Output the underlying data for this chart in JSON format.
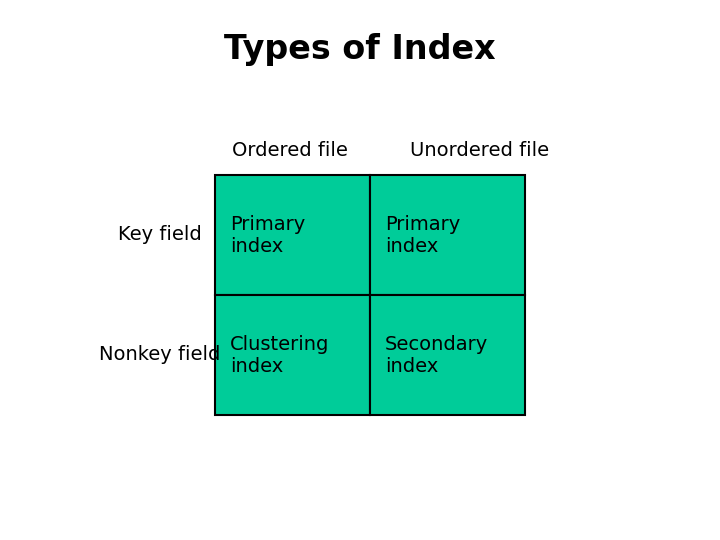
{
  "title": "Types of Index",
  "title_fontsize": 24,
  "title_fontweight": "bold",
  "title_color": "#000000",
  "background_color": "#ffffff",
  "cell_color": "#00CC99",
  "cell_border_color": "#000000",
  "cell_text_color": "#000000",
  "cell_text_fontsize": 14,
  "col_header_fontsize": 14,
  "row_header_fontsize": 14,
  "col_headers": [
    "Ordered file",
    "Unordered file"
  ],
  "row_headers": [
    "Key field",
    "Nonkey field"
  ],
  "cells": [
    [
      "Primary\nindex",
      "Primary\nindex"
    ],
    [
      "Clustering\nindex",
      "Secondary\nindex"
    ]
  ],
  "fig_width": 7.2,
  "fig_height": 5.4,
  "dpi": 100
}
